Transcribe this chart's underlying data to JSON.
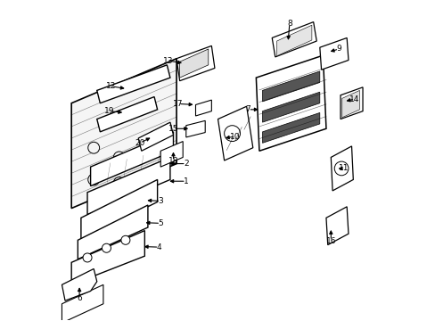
{
  "background_color": "#ffffff",
  "line_color": "#000000",
  "figsize": [
    4.89,
    3.6
  ],
  "dpi": 100,
  "label_positions": {
    "1": {
      "pt": [
        0.34,
        0.435
      ],
      "txt": [
        0.4,
        0.435
      ]
    },
    "2": {
      "pt": [
        0.34,
        0.49
      ],
      "txt": [
        0.4,
        0.49
      ]
    },
    "3": {
      "pt": [
        0.27,
        0.375
      ],
      "txt": [
        0.32,
        0.373
      ]
    },
    "4": {
      "pt": [
        0.26,
        0.23
      ],
      "txt": [
        0.315,
        0.228
      ]
    },
    "5": {
      "pt": [
        0.265,
        0.305
      ],
      "txt": [
        0.32,
        0.303
      ]
    },
    "6": {
      "pt": [
        0.065,
        0.11
      ],
      "txt": [
        0.065,
        0.068
      ]
    },
    "7": {
      "pt": [
        0.635,
        0.66
      ],
      "txt": [
        0.595,
        0.66
      ]
    },
    "8": {
      "pt": [
        0.72,
        0.87
      ],
      "txt": [
        0.725,
        0.93
      ]
    },
    "9": {
      "pt": [
        0.845,
        0.84
      ],
      "txt": [
        0.88,
        0.85
      ]
    },
    "10": {
      "pt": [
        0.515,
        0.57
      ],
      "txt": [
        0.555,
        0.575
      ]
    },
    "11": {
      "pt": [
        0.87,
        0.475
      ],
      "txt": [
        0.895,
        0.475
      ]
    },
    "12": {
      "pt": [
        0.215,
        0.725
      ],
      "txt": [
        0.165,
        0.733
      ]
    },
    "13": {
      "pt": [
        0.395,
        0.805
      ],
      "txt": [
        0.345,
        0.813
      ]
    },
    "14": {
      "pt": [
        0.895,
        0.685
      ],
      "txt": [
        0.93,
        0.693
      ]
    },
    "15": {
      "pt": [
        0.415,
        0.6
      ],
      "txt": [
        0.36,
        0.6
      ]
    },
    "16": {
      "pt": [
        0.855,
        0.29
      ],
      "txt": [
        0.855,
        0.248
      ]
    },
    "17": {
      "pt": [
        0.43,
        0.675
      ],
      "txt": [
        0.375,
        0.678
      ]
    },
    "18": {
      "pt": [
        0.36,
        0.535
      ],
      "txt": [
        0.36,
        0.498
      ]
    },
    "19": {
      "pt": [
        0.208,
        0.65
      ],
      "txt": [
        0.158,
        0.655
      ]
    },
    "20": {
      "pt": [
        0.295,
        0.575
      ],
      "txt": [
        0.255,
        0.555
      ]
    }
  }
}
